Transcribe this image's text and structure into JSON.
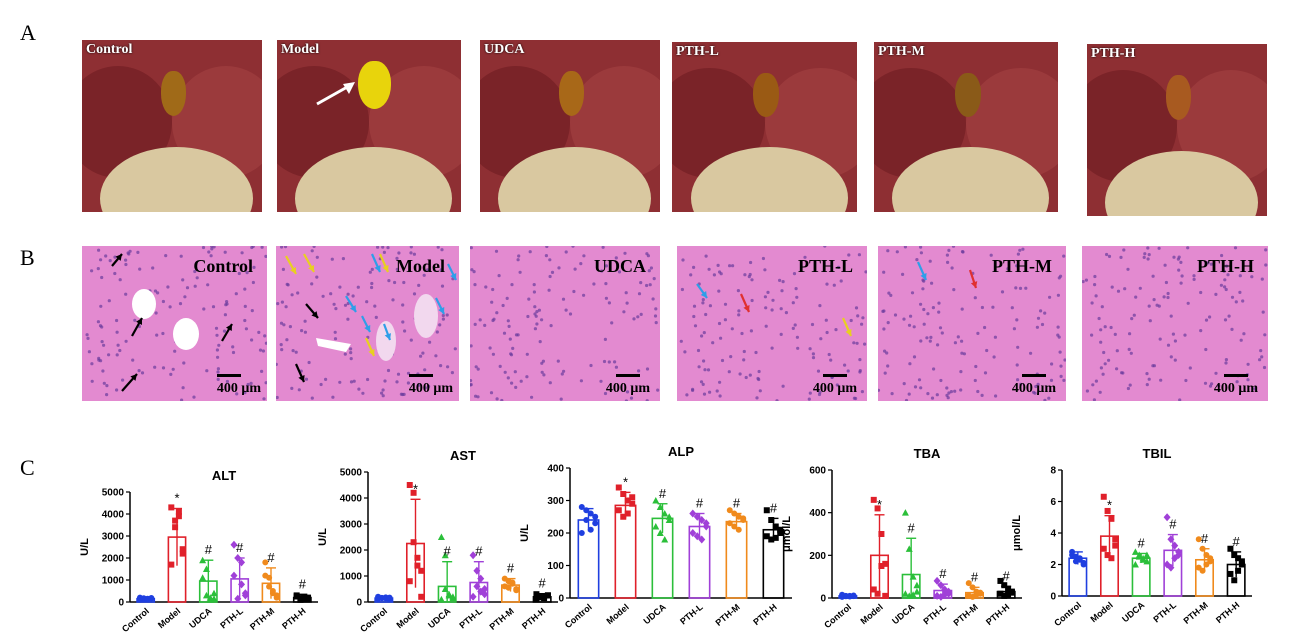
{
  "panels": {
    "a": "A",
    "b": "B",
    "c": "C"
  },
  "groups": [
    "Control",
    "Model",
    "UDCA",
    "PTH-L",
    "PTH-M",
    "PTH-H"
  ],
  "histo_labels": [
    "Control",
    "Model",
    "UDCA",
    "PTH-L",
    "PTH-M",
    "PTH-H"
  ],
  "scale_label": "400 μm",
  "colors": {
    "Control": "#1f3fe0",
    "Model": "#e0202a",
    "UDCA": "#2bbf3a",
    "PTH-L": "#a040d8",
    "PTH-M": "#f08a1c",
    "PTH-H": "#000000",
    "tissue_liver": "#8e2f33",
    "tissue_intestine": "#d9c8a0",
    "he_stain": "#e38ad0"
  },
  "arrow_colors": [
    "white",
    "black",
    "yellow",
    "blue",
    "red"
  ],
  "chart_data": [
    {
      "type": "bar",
      "title": "ALT",
      "ylabel": "U/L",
      "ylim": [
        0,
        5000
      ],
      "yticks": [
        0,
        1000,
        2000,
        3000,
        4000,
        5000
      ],
      "categories": [
        "Control",
        "Model",
        "UDCA",
        "PTH-L",
        "PTH-M",
        "PTH-H"
      ],
      "values": [
        150,
        2950,
        950,
        1050,
        850,
        200
      ],
      "errors": [
        30,
        1300,
        950,
        950,
        700,
        150
      ],
      "annotations": [
        "",
        "*",
        "#",
        "#",
        "#",
        "#"
      ],
      "points": [
        [
          100,
          120,
          150,
          180,
          200,
          170,
          130,
          160
        ],
        [
          4300,
          3400,
          4100,
          2400,
          1700,
          3700,
          3900,
          2200
        ],
        [
          1900,
          1500,
          100,
          150,
          1100,
          300,
          200,
          400
        ],
        [
          2600,
          2000,
          1800,
          400,
          1200,
          150,
          800,
          300
        ],
        [
          1800,
          1100,
          500,
          300,
          1200,
          700,
          400,
          200
        ],
        [
          300,
          100,
          200,
          150,
          250,
          180,
          120,
          200
        ]
      ]
    },
    {
      "type": "bar",
      "title": "AST",
      "ylabel": "U/L",
      "ylim": [
        0,
        5000
      ],
      "yticks": [
        0,
        1000,
        2000,
        3000,
        4000,
        5000
      ],
      "categories": [
        "Control",
        "Model",
        "UDCA",
        "PTH-L",
        "PTH-M",
        "PTH-H"
      ],
      "values": [
        150,
        2250,
        600,
        750,
        650,
        200
      ],
      "errors": [
        40,
        1700,
        950,
        800,
        250,
        120
      ],
      "annotations": [
        "",
        "*",
        "#",
        "#",
        "#",
        "#"
      ],
      "points": [
        [
          120,
          150,
          180,
          100,
          200,
          160,
          140,
          170
        ],
        [
          4500,
          4200,
          1700,
          1200,
          800,
          2300,
          1400,
          200
        ],
        [
          2500,
          1800,
          300,
          200,
          100,
          500,
          250,
          150
        ],
        [
          1800,
          1200,
          900,
          300,
          200,
          600,
          400,
          500
        ],
        [
          900,
          800,
          700,
          500,
          600,
          550,
          750,
          450
        ],
        [
          300,
          200,
          150,
          250,
          100,
          180,
          220,
          260
        ]
      ]
    },
    {
      "type": "bar",
      "title": "ALP",
      "ylabel": "U/L",
      "ylim": [
        0,
        400
      ],
      "yticks": [
        0,
        100,
        200,
        300,
        400
      ],
      "categories": [
        "Control",
        "Model",
        "UDCA",
        "PTH-L",
        "PTH-M",
        "PTH-H"
      ],
      "values": [
        240,
        285,
        245,
        220,
        235,
        210
      ],
      "errors": [
        35,
        40,
        45,
        40,
        25,
        35
      ],
      "annotations": [
        "",
        "*",
        "#",
        "#",
        "#",
        "#"
      ],
      "points": [
        [
          280,
          270,
          260,
          230,
          200,
          240,
          210,
          250
        ],
        [
          340,
          320,
          300,
          290,
          270,
          250,
          260,
          310
        ],
        [
          300,
          280,
          260,
          240,
          220,
          200,
          180,
          250
        ],
        [
          260,
          250,
          240,
          220,
          200,
          190,
          180,
          230
        ],
        [
          270,
          260,
          250,
          240,
          230,
          220,
          210,
          245
        ],
        [
          270,
          240,
          220,
          200,
          190,
          180,
          185,
          210
        ]
      ]
    },
    {
      "type": "bar",
      "title": "TBA",
      "ylabel": "μmol/L",
      "ylim": [
        0,
        600
      ],
      "yticks": [
        0,
        200,
        400,
        600
      ],
      "categories": [
        "Control",
        "Model",
        "UDCA",
        "PTH-L",
        "PTH-M",
        "PTH-H"
      ],
      "values": [
        10,
        200,
        110,
        35,
        25,
        30
      ],
      "errors": [
        5,
        190,
        170,
        30,
        25,
        25
      ],
      "annotations": [
        "",
        "*",
        "#",
        "#",
        "#",
        "#"
      ],
      "points": [
        [
          5,
          8,
          10,
          12,
          15,
          10,
          7,
          9
        ],
        [
          460,
          420,
          300,
          160,
          40,
          20,
          150,
          10
        ],
        [
          400,
          230,
          100,
          60,
          20,
          10,
          15,
          30
        ],
        [
          80,
          60,
          40,
          20,
          10,
          5,
          15,
          30
        ],
        [
          70,
          50,
          30,
          20,
          10,
          5,
          15,
          25
        ],
        [
          80,
          60,
          40,
          30,
          20,
          10,
          15,
          25
        ]
      ]
    },
    {
      "type": "bar",
      "title": "TBIL",
      "ylabel": "μmol/L",
      "ylim": [
        0,
        8
      ],
      "yticks": [
        0,
        2,
        4,
        6,
        8
      ],
      "categories": [
        "Control",
        "Model",
        "UDCA",
        "PTH-L",
        "PTH-M",
        "PTH-H"
      ],
      "values": [
        2.4,
        3.8,
        2.4,
        2.9,
        2.3,
        2.0
      ],
      "errors": [
        0.4,
        1.3,
        0.3,
        1.0,
        0.7,
        0.8
      ],
      "annotations": [
        "",
        "*",
        "#",
        "#",
        "#",
        "#"
      ],
      "points": [
        [
          2.6,
          2.5,
          2.3,
          2.0,
          2.8,
          2.2,
          2.4,
          2.1
        ],
        [
          6.3,
          5.4,
          4.9,
          3.6,
          3.0,
          2.6,
          2.4,
          3.2
        ],
        [
          2.8,
          2.6,
          2.4,
          2.2,
          2.0,
          2.5,
          2.3,
          2.6
        ],
        [
          5.0,
          3.6,
          3.2,
          2.6,
          2.0,
          1.8,
          2.4,
          2.8
        ],
        [
          3.6,
          3.0,
          2.6,
          2.2,
          1.8,
          1.6,
          2.0,
          2.4
        ],
        [
          3.0,
          2.6,
          2.4,
          2.0,
          1.4,
          1.0,
          1.6,
          2.2
        ]
      ]
    }
  ]
}
